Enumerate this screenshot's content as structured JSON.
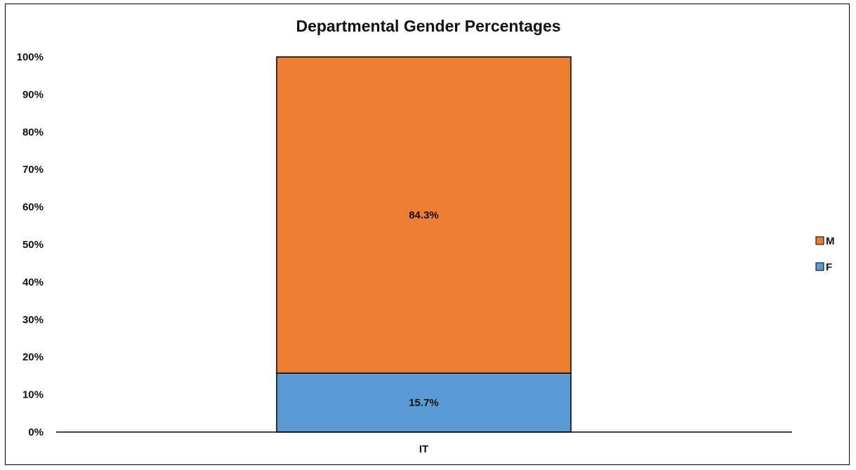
{
  "chart_data": {
    "type": "bar",
    "stacked": true,
    "title": "Departmental Gender Percentages",
    "categories": [
      "IT"
    ],
    "series": [
      {
        "name": "F",
        "values": [
          15.7
        ],
        "labels": [
          "15.7%"
        ],
        "color": "#5b9bd5"
      },
      {
        "name": "M",
        "values": [
          84.3
        ],
        "labels": [
          "84.3%"
        ],
        "color": "#ed7d31"
      }
    ],
    "ylim": [
      0,
      100
    ],
    "yticks": [
      "0%",
      "10%",
      "20%",
      "30%",
      "40%",
      "50%",
      "60%",
      "70%",
      "80%",
      "90%",
      "100%"
    ],
    "legend_order": [
      "M",
      "F"
    ],
    "legend_position": "right",
    "grid": false
  }
}
